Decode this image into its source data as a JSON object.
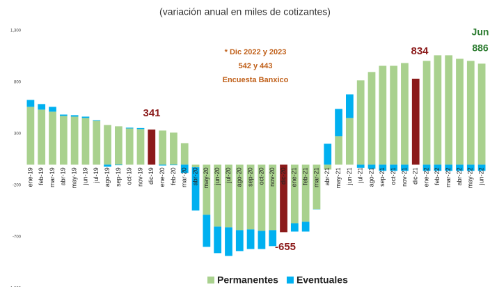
{
  "chart_data": {
    "type": "stacked_bar",
    "title": "(variación anual en miles de cotizantes)",
    "categories": [
      "ene-19",
      "feb-19",
      "mar-19",
      "abr-19",
      "may-19",
      "jun-19",
      "jul-19",
      "ago-19",
      "sep-19",
      "oct-19",
      "nov-19",
      "dic-19",
      "ene-20",
      "feb-20",
      "mar-20",
      "abr-20",
      "may-20",
      "jun-20",
      "jul-20",
      "ago-20",
      "sep-20",
      "oct-20",
      "nov-20",
      "dic-20",
      "ene-21",
      "feb-21",
      "mar-21",
      "abr-21",
      "may-21",
      "jun-21",
      "jul-21",
      "ago-21",
      "sep-21",
      "oct-21",
      "nov-21",
      "dic-21",
      "ene-22",
      "feb-22",
      "mar-22",
      "abr-22",
      "may-22",
      "jun-22"
    ],
    "series": [
      {
        "name": "Permanentes",
        "color": "#a9d18e",
        "values": [
          561,
          534,
          514,
          473,
          466,
          453,
          426,
          385,
          372,
          351,
          345,
          341,
          331,
          311,
          209,
          -25,
          -486,
          -601,
          -608,
          -635,
          -628,
          -642,
          -635,
          -655,
          -568,
          -554,
          -432,
          -47,
          277,
          453,
          818,
          899,
          959,
          959,
          986,
          834,
          1007,
          1061,
          1061,
          1027,
          1007,
          980
        ],
        "colors": [
          "#a9d18e",
          "#a9d18e",
          "#a9d18e",
          "#a9d18e",
          "#a9d18e",
          "#a9d18e",
          "#a9d18e",
          "#a9d18e",
          "#a9d18e",
          "#a9d18e",
          "#a9d18e",
          "#8b1a1a",
          "#a9d18e",
          "#a9d18e",
          "#a9d18e",
          "#a9d18e",
          "#a9d18e",
          "#a9d18e",
          "#a9d18e",
          "#a9d18e",
          "#a9d18e",
          "#a9d18e",
          "#a9d18e",
          "#8b1a1a",
          "#a9d18e",
          "#a9d18e",
          "#a9d18e",
          "#a9d18e",
          "#a9d18e",
          "#a9d18e",
          "#a9d18e",
          "#a9d18e",
          "#a9d18e",
          "#a9d18e",
          "#a9d18e",
          "#8b1a1a",
          "#a9d18e",
          "#a9d18e",
          "#a9d18e",
          "#a9d18e",
          "#a9d18e",
          "#a9d18e"
        ]
      },
      {
        "name": "Eventuales",
        "color": "#00b0f0",
        "values": [
          67,
          54,
          47,
          13,
          14,
          13,
          6,
          -20,
          -5,
          8,
          10,
          0,
          -8,
          -5,
          -80,
          -420,
          -311,
          -257,
          -277,
          -203,
          -190,
          -176,
          -155,
          0,
          -81,
          -95,
          -2,
          203,
          264,
          229,
          -30,
          -40,
          -60,
          -60,
          -60,
          0,
          -60,
          -60,
          -60,
          -60,
          -60,
          -60
        ]
      }
    ],
    "ylim": [
      -1200,
      1300
    ],
    "yticks": [
      {
        "value": 1300,
        "label": "1,300"
      },
      800,
      300,
      -200,
      -700,
      {
        "value": -1200,
        "label": "-1,200"
      }
    ],
    "annotations": [
      {
        "text": "341",
        "color": "#8b1a1a"
      },
      {
        "text": "-655",
        "color": "#8b1a1a"
      },
      {
        "text": "834",
        "color": "#8b1a1a"
      },
      {
        "text": "* Dic 2022 y 2023",
        "color": "#c0601a"
      },
      {
        "text": "542 y 443",
        "color": "#c0601a"
      },
      {
        "text": "Encuesta Banxico",
        "color": "#c0601a"
      },
      {
        "text": "Jun",
        "color": "#2e7d32"
      },
      {
        "text": "886",
        "color": "#2e7d32"
      }
    ],
    "legend": "bottom"
  }
}
